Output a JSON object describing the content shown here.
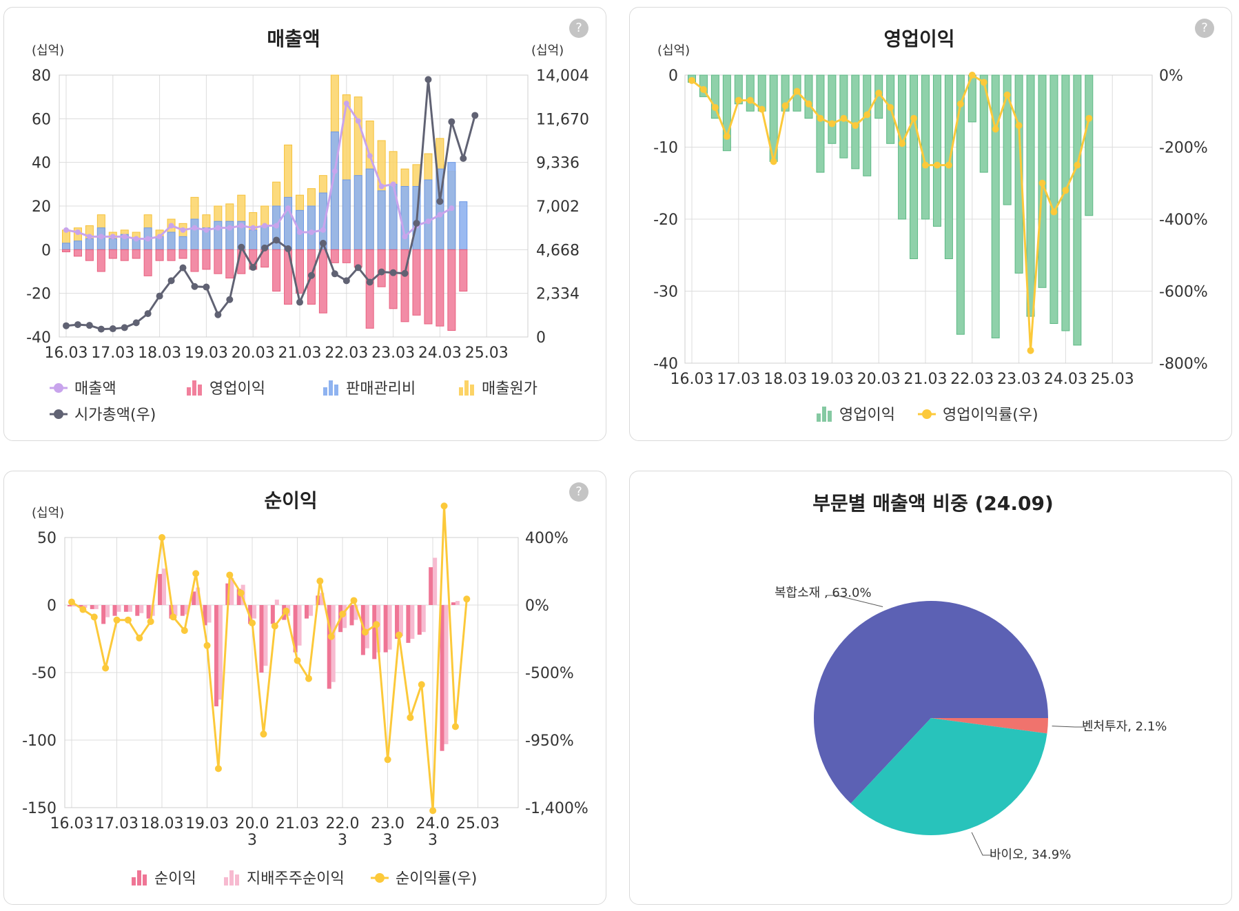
{
  "panels": {
    "revenue": {
      "title": "매출액",
      "unit_left": "(십억)",
      "unit_right": "(십억)",
      "help_label": "?",
      "legend": [
        {
          "label": "매출액",
          "color": "#c8a4ec",
          "kind": "line"
        },
        {
          "label": "영업이익",
          "color": "#f1809c",
          "kind": "bar"
        },
        {
          "label": "판매관리비",
          "color": "#8fb3f0",
          "kind": "bar"
        },
        {
          "label": "매출원가",
          "color": "#fcd366",
          "kind": "bar"
        },
        {
          "label": "시가총액(우)",
          "color": "#606273",
          "kind": "line"
        }
      ]
    },
    "operating": {
      "title": "영업이익",
      "unit_left": "(십억)",
      "help_label": "?",
      "legend": [
        {
          "label": "영업이익",
          "color": "#85c9a2",
          "kind": "bar"
        },
        {
          "label": "영업이익률(우)",
          "color": "#fcc93a",
          "kind": "line"
        }
      ]
    },
    "net": {
      "title": "순이익",
      "unit_left": "(십억)",
      "help_label": "?",
      "legend": [
        {
          "label": "순이익",
          "color": "#ef7595",
          "kind": "bar"
        },
        {
          "label": "지배주주순이익",
          "color": "#f7bad0",
          "kind": "bar"
        },
        {
          "label": "순이익률(우)",
          "color": "#fcc93a",
          "kind": "line"
        }
      ]
    },
    "segment": {
      "title": "부문별 매출액 비중 (24.09)"
    }
  },
  "chart_data": [
    {
      "id": "revenue",
      "type": "bar",
      "title": "매출액",
      "x_ticks": [
        "16.03",
        "17.03",
        "18.03",
        "19.03",
        "20.03",
        "21.03",
        "22.03",
        "23.03",
        "24.03",
        "25.03"
      ],
      "y_ticks": [
        "80",
        "60",
        "40",
        "20",
        "0",
        "-20",
        "-40"
      ],
      "y2_ticks": [
        "14,004",
        "11,670",
        "9,336",
        "7,002",
        "4,668",
        "2,334",
        "0"
      ],
      "ylim": [
        -40,
        80
      ],
      "y2lim": [
        0,
        14004
      ],
      "series": [
        {
          "name": "매출원가",
          "values": [
            9,
            10,
            11,
            16,
            8,
            9,
            8,
            16,
            9,
            14,
            12,
            24,
            16,
            20,
            21,
            25,
            17,
            20,
            31,
            48,
            25,
            28,
            34,
            80,
            71,
            70,
            59,
            50,
            45,
            37,
            39,
            44,
            51,
            36
          ]
        },
        {
          "name": "판매관리비",
          "values": [
            3,
            4,
            5,
            10,
            5,
            7,
            5,
            10,
            6,
            8,
            6,
            14,
            10,
            13,
            13,
            13,
            9,
            11,
            20,
            24,
            18,
            20,
            26,
            54,
            32,
            34,
            37,
            27,
            30,
            29,
            29,
            32,
            37,
            40,
            22
          ]
        },
        {
          "name": "영업이익",
          "values": [
            -1,
            -3,
            -5,
            -10,
            -4,
            -5,
            -4,
            -12,
            -5,
            -5,
            -4,
            -10,
            -9,
            -11,
            -13,
            -11,
            -9,
            -8,
            -19,
            -25,
            -20,
            -25,
            -29,
            -6,
            -6,
            -8,
            -36,
            -17,
            -27,
            -33,
            -30,
            -34,
            -35,
            -37,
            -19
          ]
        },
        {
          "name": "매출액",
          "values": [
            9,
            8,
            6,
            6,
            6,
            6,
            5,
            5,
            6,
            11,
            9,
            10,
            9,
            10,
            10,
            11,
            10,
            11,
            11,
            19,
            8,
            8,
            9,
            36,
            67,
            59,
            43,
            29,
            30,
            6,
            11,
            13,
            16,
            19
          ]
        },
        {
          "name": "시가총액(우)",
          "values": [
            600,
            660,
            620,
            420,
            440,
            500,
            760,
            1250,
            2190,
            3010,
            3700,
            2700,
            2670,
            1190,
            2000,
            4800,
            3720,
            4760,
            5180,
            4720,
            1860,
            3290,
            5010,
            3380,
            3010,
            3710,
            2930,
            3480,
            3440,
            3400,
            6080,
            13770,
            7250,
            11510,
            9550,
            11850
          ]
        }
      ]
    },
    {
      "id": "operating",
      "type": "bar",
      "title": "영업이익",
      "x_ticks": [
        "16.03",
        "17.03",
        "18.03",
        "19.03",
        "20.03",
        "21.03",
        "22.03",
        "23.03",
        "24.03",
        "25.03"
      ],
      "y_ticks": [
        "0",
        "-10",
        "-20",
        "-30",
        "-40"
      ],
      "y2_ticks": [
        "0%",
        "-200%",
        "-400%",
        "-600%",
        "-800%"
      ],
      "ylim": [
        -40,
        0
      ],
      "y2lim": [
        -800,
        0
      ],
      "series": [
        {
          "name": "영업이익",
          "values": [
            -1,
            -3,
            -6,
            -10.5,
            -4,
            -5,
            -5,
            -12,
            -5,
            -5,
            -6,
            -13.5,
            -9.5,
            -11.5,
            -13,
            -14,
            -6,
            -9.5,
            -20,
            -25.5,
            -20,
            -21,
            -25.5,
            -36,
            -6.5,
            -13.5,
            -36.5,
            -18,
            -27.5,
            -33.5,
            -29.5,
            -34.5,
            -35.5,
            -37.5,
            -19.5
          ]
        },
        {
          "name": "영업이익률(우)",
          "values": [
            -15,
            -40,
            -90,
            -170,
            -70,
            -70,
            -95,
            -240,
            -85,
            -45,
            -80,
            -120,
            -135,
            -120,
            -140,
            -110,
            -50,
            -90,
            -190,
            -120,
            -250,
            -250,
            -250,
            -80,
            0,
            -20,
            -150,
            -55,
            -140,
            -765,
            -300,
            -380,
            -320,
            -250,
            -120
          ]
        }
      ]
    },
    {
      "id": "net",
      "type": "bar",
      "title": "순이익",
      "x_ticks": [
        "16.03",
        "17.03",
        "18.03",
        "19.03",
        "20.03",
        "21.03",
        "22.03",
        "23.03",
        "24.03",
        "25.03"
      ],
      "x_tick_lines": [
        [
          "16.03"
        ],
        [
          "17.03"
        ],
        [
          "18.03"
        ],
        [
          "19.03"
        ],
        [
          "20.0",
          "3"
        ],
        [
          "21.03"
        ],
        [
          "22.0",
          "3"
        ],
        [
          "23.0",
          "3"
        ],
        [
          "24.0",
          "3"
        ],
        [
          "25.03"
        ]
      ],
      "y_ticks": [
        "50",
        "0",
        "-50",
        "-100",
        "-150"
      ],
      "y2_ticks": [
        "400%",
        "0%",
        "-500%",
        "-950%",
        "-1,400%"
      ],
      "ylim": [
        -150,
        50
      ],
      "y2lim": [
        -1400,
        400
      ],
      "series": [
        {
          "name": "순이익",
          "values": [
            -1,
            -2,
            -3,
            -14,
            -8,
            -5,
            -8,
            -10,
            23,
            -10,
            -8,
            10,
            -15,
            -75,
            16,
            12,
            -14,
            -50,
            -14,
            -11,
            -35,
            -10,
            7,
            -62,
            -20,
            -15,
            -37,
            -40,
            -35,
            -25,
            -28,
            -22,
            28,
            -108,
            2
          ]
        },
        {
          "name": "지배주주순이익",
          "values": [
            -1,
            -2,
            -3,
            -9,
            -5,
            -5,
            -6,
            -8,
            27,
            -8,
            -7,
            13,
            -13,
            -70,
            20,
            15,
            -10,
            -45,
            4,
            -8,
            -30,
            -8,
            9,
            -57,
            -17,
            -11,
            -32,
            -35,
            -33,
            -23,
            -25,
            -20,
            35,
            -103,
            3
          ]
        },
        {
          "name": "순이익률(우)",
          "values": [
            -30,
            -80,
            -130,
            -470,
            -150,
            -150,
            -270,
            -160,
            400,
            -130,
            -220,
            160,
            -320,
            -1140,
            150,
            30,
            -170,
            -910,
            -190,
            -90,
            -420,
            -540,
            110,
            -260,
            -110,
            -20,
            -230,
            -180,
            -1080,
            -250,
            -800,
            -580,
            -1420,
            610,
            -860,
            -10
          ]
        }
      ]
    },
    {
      "id": "segment",
      "type": "pie",
      "title": "부문별 매출액 비중 (24.09)",
      "slices": [
        {
          "label": "복합소재 , 63.0%",
          "value": 63.0,
          "color": "#5c61b4"
        },
        {
          "label": "벤처투자, 2.1%",
          "value": 2.1,
          "color": "#f0736d"
        },
        {
          "label": "바이오, 34.9%",
          "value": 34.9,
          "color": "#28c3bb"
        }
      ]
    }
  ]
}
